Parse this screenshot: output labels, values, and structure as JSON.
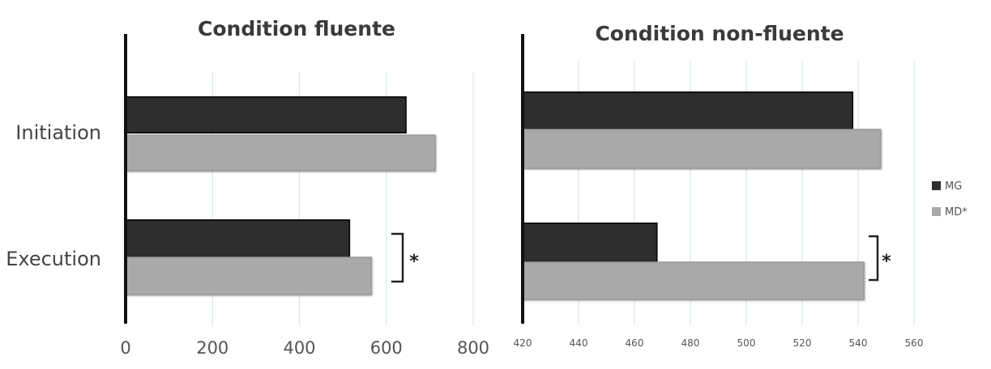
{
  "chart_data": [
    {
      "type": "bar",
      "orientation": "horizontal",
      "title": "Condition fluente",
      "categories": [
        "Initiation",
        "Execution"
      ],
      "series": [
        {
          "name": "MG",
          "values": [
            645,
            515
          ]
        },
        {
          "name": "MD*",
          "values": [
            712,
            565
          ]
        }
      ],
      "xlim": [
        0,
        800
      ],
      "xticks": [
        "0",
        "200",
        "400",
        "600",
        "800"
      ],
      "grid": true,
      "significance": [
        {
          "category": "Execution",
          "label": "*"
        }
      ]
    },
    {
      "type": "bar",
      "orientation": "horizontal",
      "title": "Condition non-fluente",
      "categories": [
        "Initiation",
        "Execution"
      ],
      "series": [
        {
          "name": "MG",
          "values": [
            538,
            468
          ]
        },
        {
          "name": "MD*",
          "values": [
            548,
            542
          ]
        }
      ],
      "xlim": [
        420,
        560
      ],
      "xticks": [
        "420",
        "440",
        "460",
        "480",
        "500",
        "520",
        "540",
        "560"
      ],
      "grid": true,
      "significance": [
        {
          "category": "Execution",
          "label": "*"
        }
      ]
    }
  ],
  "legend": {
    "placement": "right",
    "items": [
      {
        "label": "MG",
        "color": "#2e2e2e"
      },
      {
        "label": "MD*",
        "color": "#a9a9a9"
      }
    ]
  },
  "colors": {
    "MG": "#2e2e2e",
    "MD*": "#a9a9a9",
    "grid": "#d9e6ea",
    "axis": "#111111"
  }
}
